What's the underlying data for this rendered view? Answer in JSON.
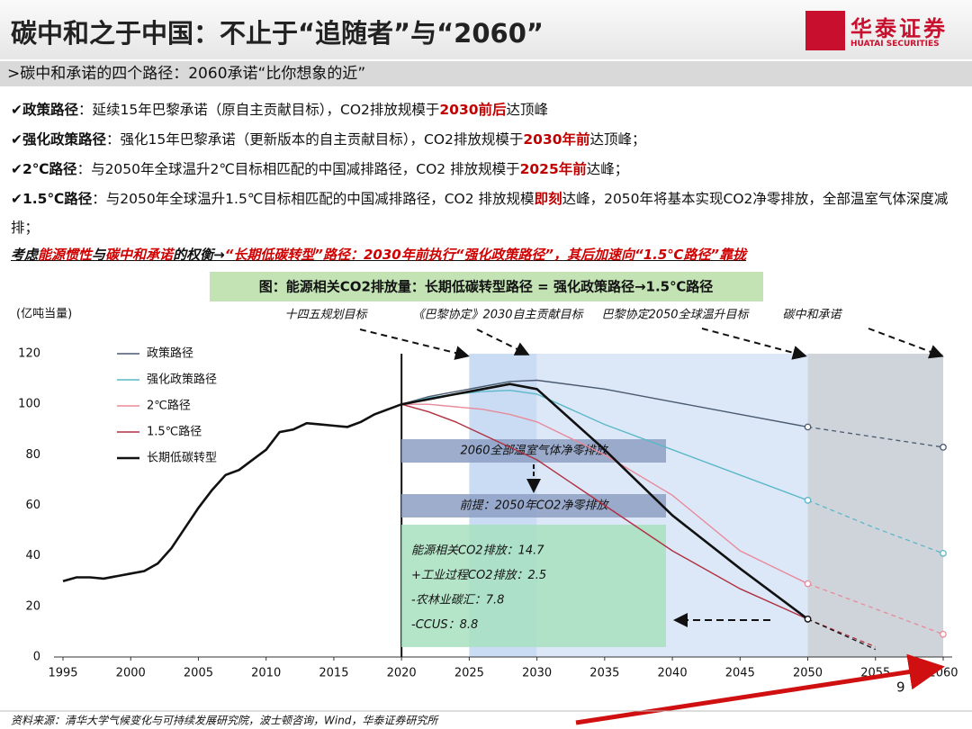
{
  "header": {
    "title": "碳中和之于中国：不止于“追随者”与“2060”",
    "logo_cn": "华泰证券",
    "logo_en": "HUATAI SECURITIES"
  },
  "subtitle": ">碳中和承诺的四个路径：2060承诺“比你想象的近”",
  "bullets": [
    [
      {
        "text": "政策路径",
        "style": "label"
      },
      {
        "text": "：延续15年巴黎承诺（原自主贡献目标），CO2排放规模于",
        "style": "plain"
      },
      {
        "text": "2030前后",
        "style": "red"
      },
      {
        "text": "达顶峰",
        "style": "plain"
      }
    ],
    [
      {
        "text": "强化政策路径",
        "style": "label"
      },
      {
        "text": "：强化15年巴黎承诺（更新版本的自主贡献目标），CO2排放规模于",
        "style": "plain"
      },
      {
        "text": "2030年前",
        "style": "red"
      },
      {
        "text": "达顶峰；",
        "style": "plain"
      }
    ],
    [
      {
        "text": "2℃路径",
        "style": "label"
      },
      {
        "text": "：与2050年全球温升2℃目标相匹配的中国减排路径，CO2 排放规模于",
        "style": "plain"
      },
      {
        "text": "2025年前",
        "style": "red"
      },
      {
        "text": "达峰；",
        "style": "plain"
      }
    ],
    [
      {
        "text": "1.5℃路径",
        "style": "label"
      },
      {
        "text": "：与2050年全球温升1.5℃目标相匹配的中国减排路径，CO2 排放规模",
        "style": "plain"
      },
      {
        "text": "即刻",
        "style": "red"
      },
      {
        "text": "达峰，2050年将基本实现CO2净零排放，全部温室气体深度减排；",
        "style": "plain"
      }
    ]
  ],
  "conclusion": [
    {
      "text": "考虑",
      "style": "plain"
    },
    {
      "text": "能源惯性",
      "style": "red"
    },
    {
      "text": "与",
      "style": "plain"
    },
    {
      "text": "碳中和承诺",
      "style": "red"
    },
    {
      "text": "的权衡→",
      "style": "plain"
    },
    {
      "text": "“长期低碳转型”路径：2030年前执行“强化政策路径”，其后加速向“1.5℃路径”靠拢",
      "style": "red"
    }
  ],
  "chart_data": {
    "type": "line",
    "title": "图：能源相关CO2排放量：长期低碳转型路径 = 强化政策路径→1.5℃路径",
    "y_label": "(亿吨当量)",
    "xlim": [
      1995,
      2060
    ],
    "xticks": [
      1995,
      2000,
      2005,
      2010,
      2015,
      2020,
      2025,
      2030,
      2035,
      2040,
      2045,
      2050,
      2055,
      2060
    ],
    "ylim": [
      0,
      120
    ],
    "yticks": [
      0,
      20,
      40,
      60,
      80,
      100,
      120
    ],
    "legend": "upper left",
    "dashed_after": 2050,
    "marker_x": [
      2050,
      2060
    ],
    "divider_x": 2020,
    "bands": [
      {
        "from": 2025,
        "to": 2030,
        "color": "#c9dcf3"
      },
      {
        "from": 2030,
        "to": 2050,
        "color": "#dce8f8"
      },
      {
        "from": 2050,
        "to": 2060,
        "color": "#cfd4da"
      }
    ],
    "x": [
      1995,
      1996,
      1997,
      1998,
      1999,
      2000,
      2001,
      2002,
      2003,
      2004,
      2005,
      2006,
      2007,
      2008,
      2009,
      2010,
      2011,
      2012,
      2013,
      2014,
      2015,
      2016,
      2017,
      2018,
      2019,
      2020,
      2022,
      2024,
      2026,
      2028,
      2030,
      2035,
      2040,
      2045,
      2050,
      2055,
      2060
    ],
    "series": [
      {
        "name": "政策路径",
        "color": "#4a5a70",
        "values": [
          null,
          null,
          null,
          null,
          null,
          null,
          null,
          null,
          null,
          null,
          null,
          null,
          null,
          null,
          null,
          null,
          null,
          null,
          null,
          null,
          null,
          null,
          null,
          null,
          null,
          100,
          103,
          105,
          107,
          109,
          109.5,
          106,
          101,
          96,
          91,
          87,
          83
        ]
      },
      {
        "name": "强化政策路径",
        "color": "#5cb8c8",
        "values": [
          null,
          null,
          null,
          null,
          null,
          null,
          null,
          null,
          null,
          null,
          null,
          null,
          null,
          null,
          null,
          null,
          null,
          null,
          null,
          null,
          null,
          null,
          null,
          null,
          null,
          100,
          102.5,
          104,
          105,
          105.5,
          104,
          92,
          82,
          72,
          62,
          51,
          41
        ]
      },
      {
        "name": "2℃路径",
        "color": "#e88a9a",
        "values": [
          null,
          null,
          null,
          null,
          null,
          null,
          null,
          null,
          null,
          null,
          null,
          null,
          null,
          null,
          null,
          null,
          null,
          null,
          null,
          null,
          null,
          null,
          null,
          null,
          null,
          100,
          100,
          99,
          98,
          96,
          93,
          80,
          64,
          42,
          29,
          19,
          9
        ]
      },
      {
        "name": "1.5℃路径",
        "color": "#b03040",
        "values": [
          null,
          null,
          null,
          null,
          null,
          null,
          null,
          null,
          null,
          null,
          null,
          null,
          null,
          null,
          null,
          null,
          null,
          null,
          null,
          null,
          null,
          null,
          null,
          null,
          null,
          100,
          97,
          93,
          88,
          83,
          78,
          60,
          42,
          27,
          15,
          4,
          null
        ]
      },
      {
        "name": "长期低碳转型",
        "color": "#111111",
        "values": [
          30,
          31.5,
          31.5,
          31,
          32,
          33,
          34,
          37,
          43,
          51,
          59,
          66,
          72,
          74,
          78,
          82,
          89,
          90,
          92.5,
          92,
          91.5,
          91,
          93,
          96,
          98,
          100,
          102,
          104,
          106,
          108,
          106,
          82,
          56,
          35,
          15,
          3,
          null
        ]
      }
    ],
    "annotations": {
      "top": [
        "十四五规划目标",
        "《巴黎协定》2030自主贡献目标",
        "巴黎协定2050全球温升目标",
        "碳中和承诺"
      ],
      "boxes": [
        "2060全部温室气体净零排放",
        "前提：2050年CO2净零排放"
      ],
      "notes": [
        "能源相关CO2排放：14.7",
        "+工业过程CO2排放：2.5",
        "-农林业碳汇：7.8",
        "-CCUS：8.8"
      ]
    }
  },
  "footer": {
    "source": "资料来源：清华大学气候变化与可持续发展研究院，波士顿咨询，Wind，华泰证券研究所",
    "page": "9"
  }
}
